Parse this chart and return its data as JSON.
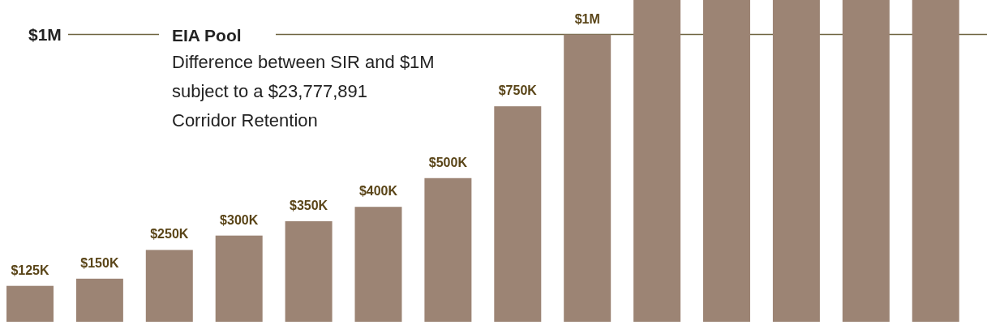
{
  "chart_data": {
    "type": "bar",
    "categories": [
      null,
      null,
      null,
      null,
      null,
      null,
      null,
      null,
      null,
      null,
      null,
      null,
      null,
      null
    ],
    "values": [
      125000,
      150000,
      250000,
      300000,
      350000,
      400000,
      500000,
      750000,
      1000000,
      1120000,
      1120000,
      1120000,
      1120000,
      1120000
    ],
    "value_labels": [
      "$125K",
      "$150K",
      "$250K",
      "$300K",
      "$350K",
      "$400K",
      "$500K",
      "$750K",
      "$1M",
      null,
      null,
      null,
      null,
      null
    ],
    "color": "#9c8474",
    "ref_lines": [
      {
        "axis": "y",
        "value": 1000000,
        "label": "$1M",
        "color": "#6e6440"
      }
    ],
    "annotations": [
      "EIA Pool",
      "Difference between SIR and $1M",
      "subject to a $23,777,891",
      "Corridor Retention"
    ]
  }
}
